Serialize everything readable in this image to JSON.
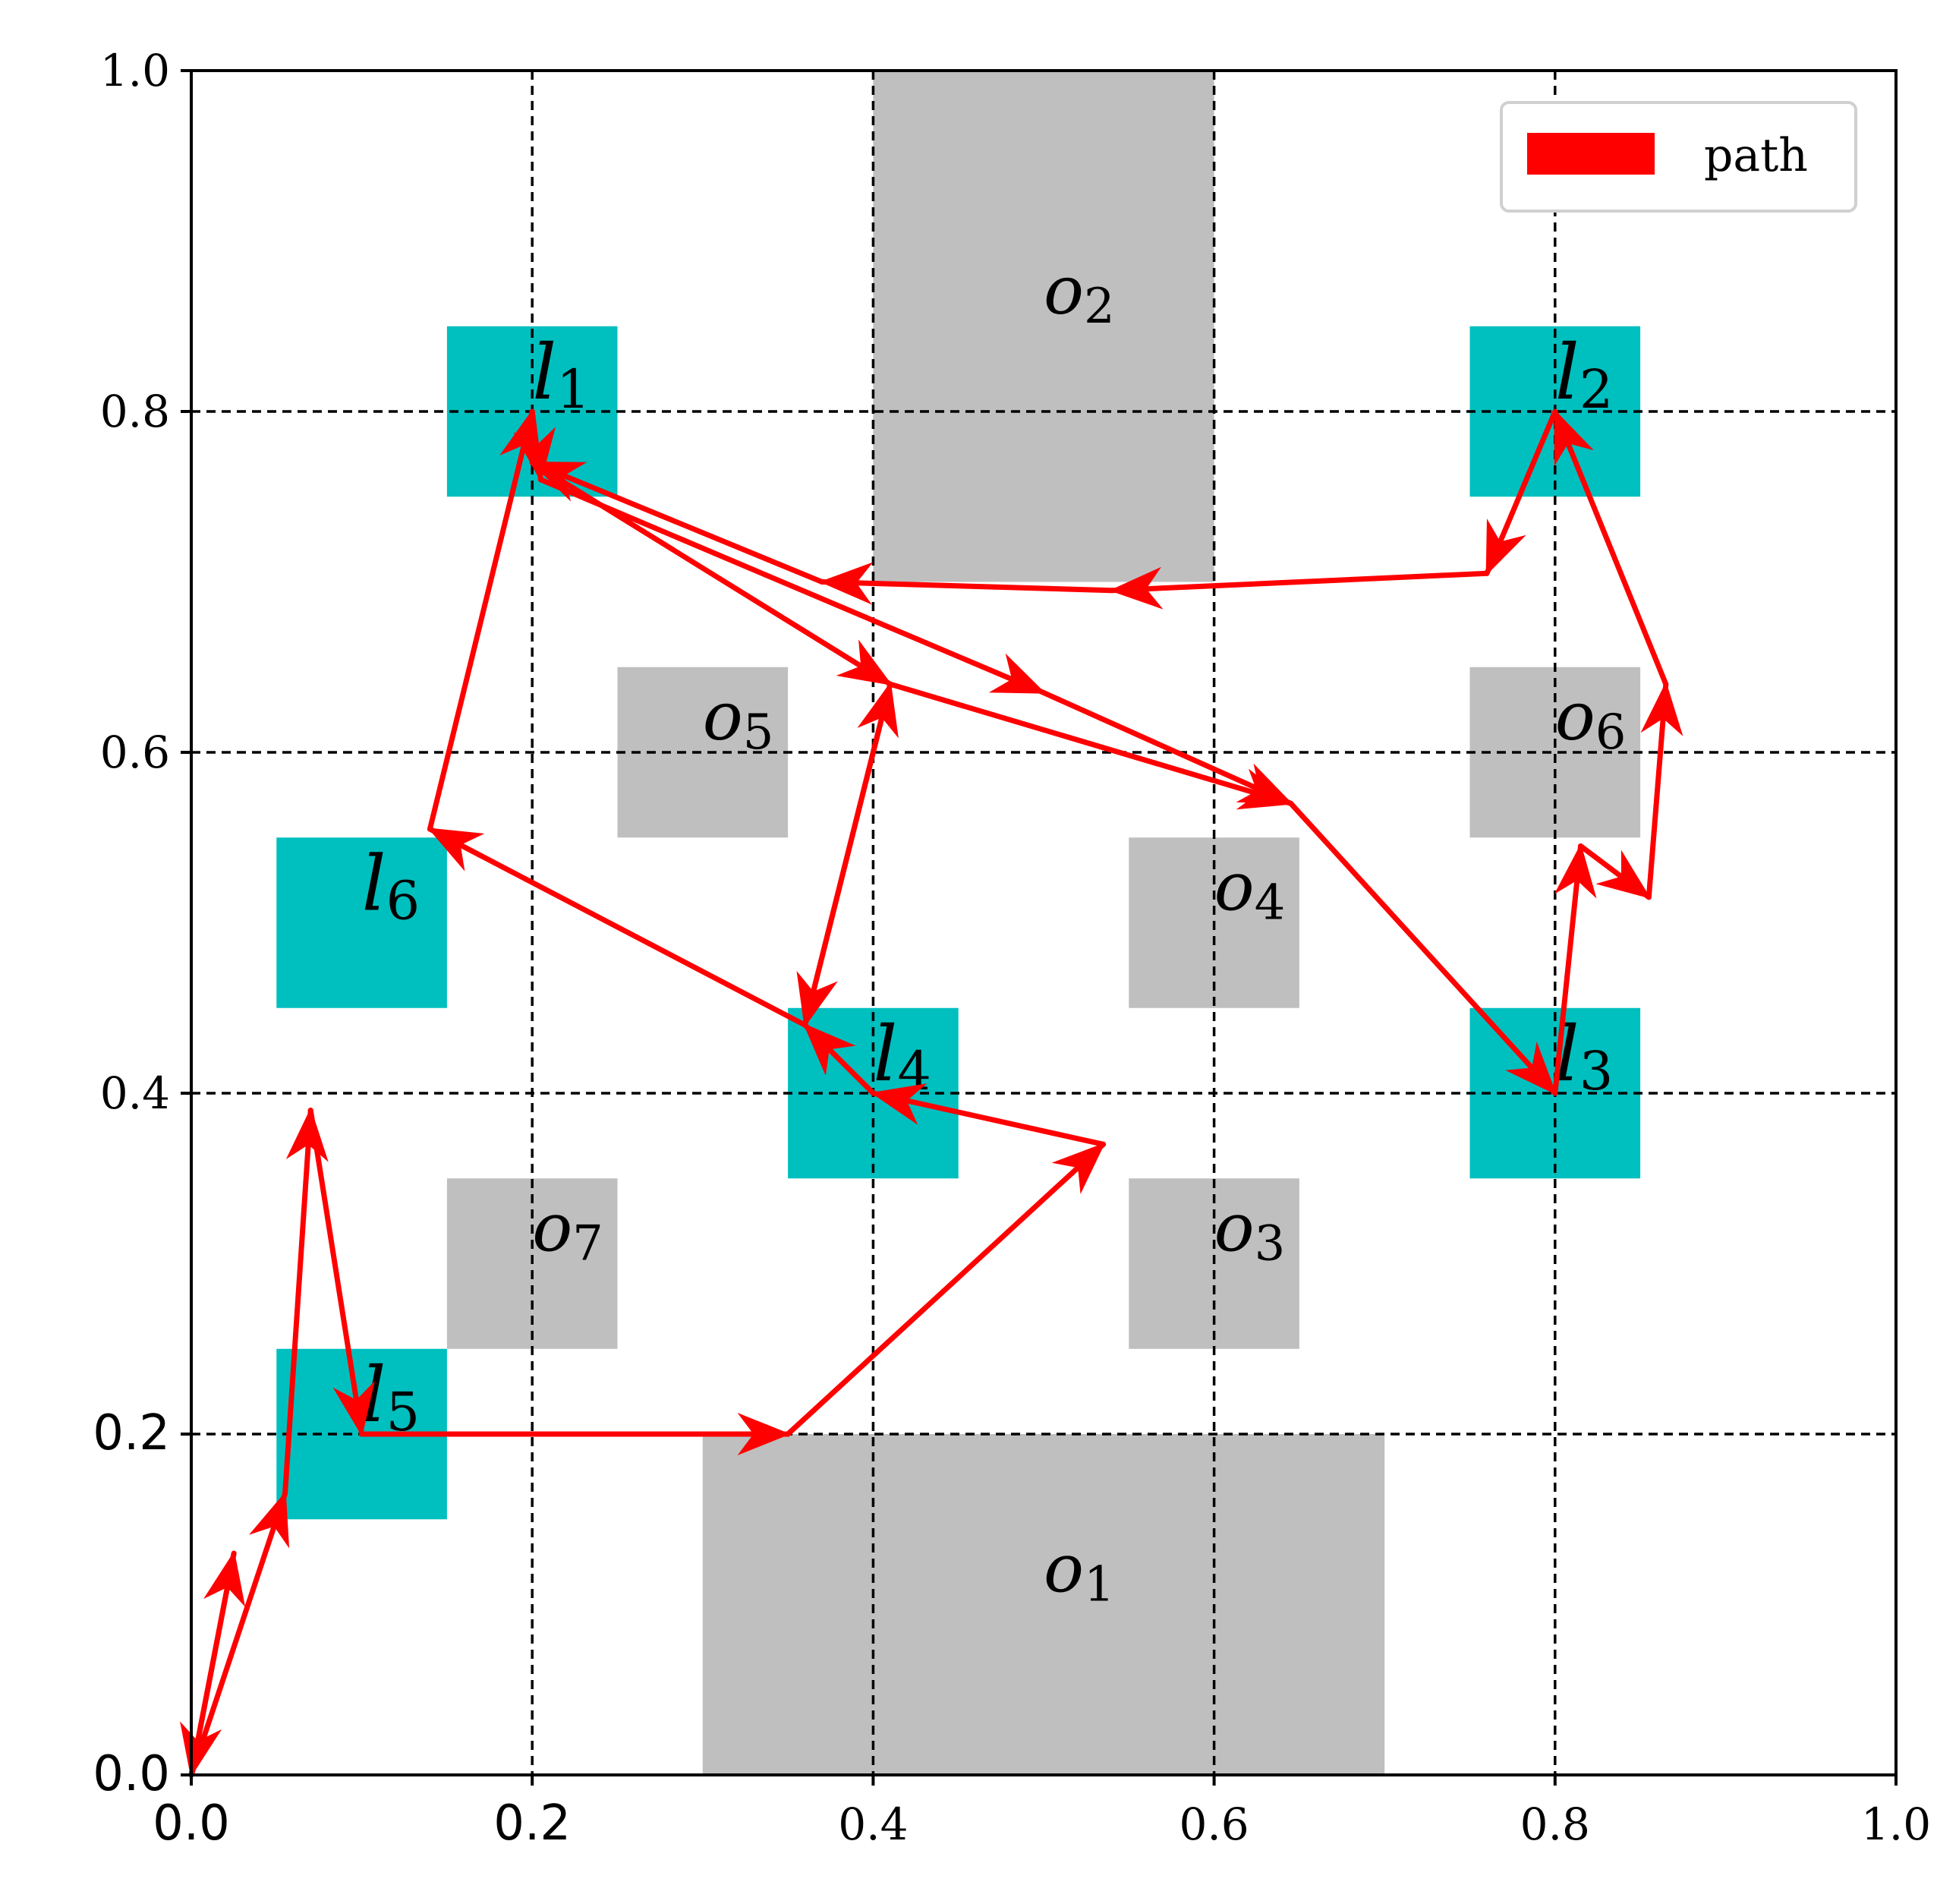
{
  "chart_data": {
    "type": "line",
    "xlim": [
      0.0,
      1.0
    ],
    "ylim": [
      0.0,
      1.0
    ],
    "grid": true,
    "grid_style": "dashed",
    "legend_position": "top-right",
    "x_ticks": [
      {
        "value": 0.0,
        "label": "0.0",
        "style": "sans"
      },
      {
        "value": 0.2,
        "label": "0.2",
        "style": "sans"
      },
      {
        "value": 0.4,
        "label": "0.4",
        "style": "serif"
      },
      {
        "value": 0.6,
        "label": "0.6",
        "style": "serif"
      },
      {
        "value": 0.8,
        "label": "0.8",
        "style": "serif"
      },
      {
        "value": 1.0,
        "label": "1.0",
        "style": "serif"
      }
    ],
    "y_ticks": [
      {
        "value": 0.0,
        "label": "0.0",
        "style": "sans"
      },
      {
        "value": 0.2,
        "label": "0.2",
        "style": "sans"
      },
      {
        "value": 0.4,
        "label": "0.4",
        "style": "serif"
      },
      {
        "value": 0.6,
        "label": "0.6",
        "style": "serif"
      },
      {
        "value": 0.8,
        "label": "0.8",
        "style": "serif"
      },
      {
        "value": 1.0,
        "label": "1.0",
        "style": "serif"
      }
    ],
    "obstacles": [
      {
        "id": "o1",
        "label": "o",
        "sub": "1",
        "x0": 0.3,
        "x1": 0.7,
        "y0": 0.0,
        "y1": 0.2,
        "label_x": 0.5,
        "label_y": 0.12
      },
      {
        "id": "o2",
        "label": "o",
        "sub": "2",
        "x0": 0.4,
        "x1": 0.6,
        "y0": 0.7,
        "y1": 1.0,
        "label_x": 0.5,
        "label_y": 0.87
      },
      {
        "id": "o3",
        "label": "o",
        "sub": "3",
        "x0": 0.55,
        "x1": 0.65,
        "y0": 0.25,
        "y1": 0.35,
        "label_x": 0.6,
        "label_y": 0.32
      },
      {
        "id": "o4",
        "label": "o",
        "sub": "4",
        "x0": 0.55,
        "x1": 0.65,
        "y0": 0.45,
        "y1": 0.55,
        "label_x": 0.6,
        "label_y": 0.52
      },
      {
        "id": "o5",
        "label": "o",
        "sub": "5",
        "x0": 0.25,
        "x1": 0.35,
        "y0": 0.55,
        "y1": 0.65,
        "label_x": 0.3,
        "label_y": 0.62
      },
      {
        "id": "o6",
        "label": "o",
        "sub": "6",
        "x0": 0.75,
        "x1": 0.85,
        "y0": 0.55,
        "y1": 0.65,
        "label_x": 0.8,
        "label_y": 0.62
      },
      {
        "id": "o7",
        "label": "o",
        "sub": "7",
        "x0": 0.15,
        "x1": 0.25,
        "y0": 0.25,
        "y1": 0.35,
        "label_x": 0.2,
        "label_y": 0.32
      }
    ],
    "regions": [
      {
        "id": "l1",
        "label": "l",
        "sub": "1",
        "x0": 0.15,
        "x1": 0.25,
        "y0": 0.75,
        "y1": 0.85,
        "label_x": 0.2,
        "label_y": 0.82
      },
      {
        "id": "l2",
        "label": "l",
        "sub": "2",
        "x0": 0.75,
        "x1": 0.85,
        "y0": 0.75,
        "y1": 0.85,
        "label_x": 0.8,
        "label_y": 0.82
      },
      {
        "id": "l3",
        "label": "l",
        "sub": "3",
        "x0": 0.75,
        "x1": 0.85,
        "y0": 0.35,
        "y1": 0.45,
        "label_x": 0.8,
        "label_y": 0.42
      },
      {
        "id": "l4",
        "label": "l",
        "sub": "4",
        "x0": 0.35,
        "x1": 0.45,
        "y0": 0.35,
        "y1": 0.45,
        "label_x": 0.4,
        "label_y": 0.42
      },
      {
        "id": "l5",
        "label": "l",
        "sub": "5",
        "x0": 0.05,
        "x1": 0.15,
        "y0": 0.15,
        "y1": 0.25,
        "label_x": 0.1,
        "label_y": 0.22
      },
      {
        "id": "l6",
        "label": "l",
        "sub": "6",
        "x0": 0.05,
        "x1": 0.15,
        "y0": 0.45,
        "y1": 0.55,
        "label_x": 0.1,
        "label_y": 0.52
      }
    ],
    "series": [
      {
        "name": "path",
        "color": "#ff0000",
        "points": [
          [
            0.0,
            0.0
          ],
          [
            0.025,
            0.13
          ],
          [
            0.0,
            0.0
          ],
          [
            0.055,
            0.165
          ],
          [
            0.07,
            0.39
          ],
          [
            0.1,
            0.2
          ],
          [
            0.35,
            0.2
          ],
          [
            0.535,
            0.37
          ],
          [
            0.4,
            0.4
          ],
          [
            0.36,
            0.44
          ],
          [
            0.41,
            0.64
          ],
          [
            0.36,
            0.44
          ],
          [
            0.14,
            0.555
          ],
          [
            0.2,
            0.8
          ],
          [
            0.205,
            0.76
          ],
          [
            0.5,
            0.635
          ],
          [
            0.645,
            0.57
          ],
          [
            0.8,
            0.4
          ],
          [
            0.815,
            0.545
          ],
          [
            0.855,
            0.515
          ],
          [
            0.865,
            0.64
          ],
          [
            0.8,
            0.8
          ],
          [
            0.76,
            0.705
          ],
          [
            0.54,
            0.695
          ],
          [
            0.37,
            0.7
          ],
          [
            0.2,
            0.77
          ],
          [
            0.41,
            0.64
          ],
          [
            0.645,
            0.57
          ]
        ]
      }
    ],
    "colors": {
      "obstacle": "#bfbfbf",
      "region": "#00bfbf",
      "path": "#ff0000",
      "grid": "#000000"
    },
    "legend": {
      "label": "path"
    }
  }
}
